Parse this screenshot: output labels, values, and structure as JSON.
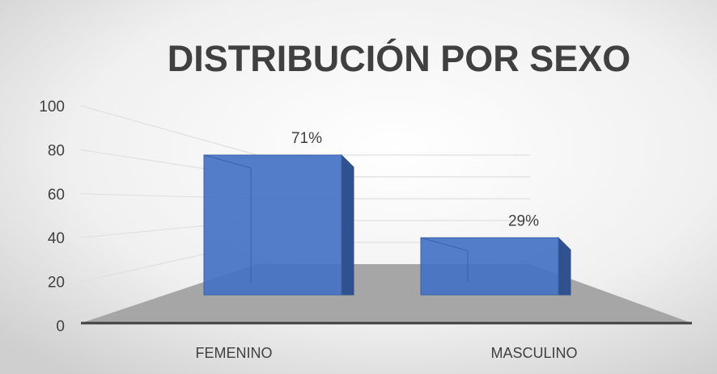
{
  "chart_data": {
    "type": "bar3d",
    "title": "DISTRIBUCIÓN POR SEXO",
    "categories": [
      "FEMENINO",
      "MASCULINO"
    ],
    "values": [
      71,
      29
    ],
    "value_labels": [
      "71%",
      "29%"
    ],
    "color": "#4472c4",
    "ylim": [
      0,
      100
    ],
    "yticks": [
      0,
      20,
      40,
      60,
      80,
      100
    ],
    "grid": true
  }
}
